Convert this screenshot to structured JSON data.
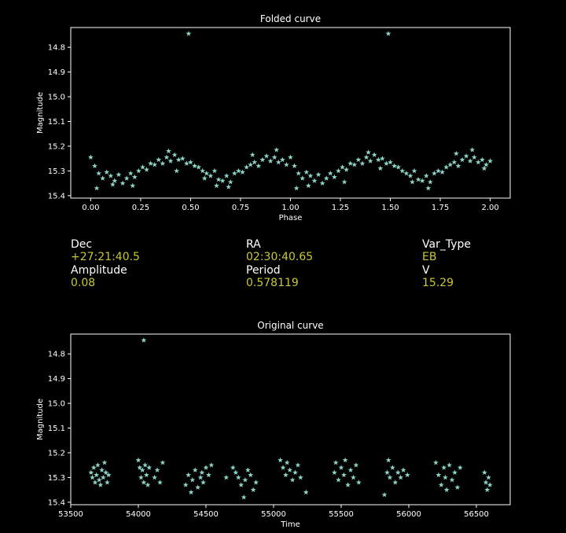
{
  "theme": {
    "background": "#000000",
    "marker_color": "#8dd3c7",
    "value_color": "#c8c832",
    "text_color": "#ffffff"
  },
  "info": {
    "dec_label": "Dec",
    "dec_value": "+27:21:40.5",
    "ra_label": "RA",
    "ra_value": "02:30:40.65",
    "vartype_label": "Var_Type",
    "vartype_value": "EB",
    "amplitude_label": "Amplitude",
    "amplitude_value": "0.08",
    "period_label": "Period",
    "period_value": "0.578119",
    "v_label": "V",
    "v_value": "15.29"
  },
  "chart_data": [
    {
      "type": "scatter",
      "title": "Folded curve",
      "xlabel": "Phase",
      "ylabel": "Magnitude",
      "xlim": [
        -0.1,
        2.1
      ],
      "ylim": [
        15.41,
        14.72
      ],
      "y_inverted": true,
      "xticks": [
        0.0,
        0.25,
        0.5,
        0.75,
        1.0,
        1.25,
        1.5,
        1.75,
        2.0
      ],
      "xtick_labels": [
        "0.00",
        "0.25",
        "0.50",
        "0.75",
        "1.00",
        "1.25",
        "1.50",
        "1.75",
        "2.00"
      ],
      "yticks": [
        14.8,
        14.9,
        15.0,
        15.1,
        15.2,
        15.3,
        15.4
      ],
      "ytick_labels": [
        "14.8",
        "14.9",
        "15.0",
        "15.1",
        "15.2",
        "15.3",
        "15.4"
      ],
      "marker": "star",
      "grid": false,
      "points": [
        [
          0.49,
          14.745
        ],
        [
          1.49,
          14.745
        ],
        [
          0.0,
          15.245
        ],
        [
          0.02,
          15.28
        ],
        [
          0.04,
          15.31
        ],
        [
          0.06,
          15.33
        ],
        [
          0.08,
          15.305
        ],
        [
          0.1,
          15.32
        ],
        [
          0.12,
          15.34
        ],
        [
          0.14,
          15.315
        ],
        [
          0.16,
          15.35
        ],
        [
          0.18,
          15.33
        ],
        [
          0.2,
          15.31
        ],
        [
          0.22,
          15.325
        ],
        [
          0.24,
          15.3
        ],
        [
          0.26,
          15.285
        ],
        [
          0.28,
          15.295
        ],
        [
          0.3,
          15.27
        ],
        [
          0.32,
          15.275
        ],
        [
          0.34,
          15.255
        ],
        [
          0.36,
          15.27
        ],
        [
          0.38,
          15.245
        ],
        [
          0.4,
          15.26
        ],
        [
          0.42,
          15.235
        ],
        [
          0.44,
          15.255
        ],
        [
          0.46,
          15.25
        ],
        [
          0.48,
          15.27
        ],
        [
          0.5,
          15.265
        ],
        [
          0.52,
          15.28
        ],
        [
          0.54,
          15.285
        ],
        [
          0.56,
          15.3
        ],
        [
          0.58,
          15.31
        ],
        [
          0.6,
          15.32
        ],
        [
          0.62,
          15.3
        ],
        [
          0.64,
          15.335
        ],
        [
          0.66,
          15.34
        ],
        [
          0.68,
          15.32
        ],
        [
          0.7,
          15.345
        ],
        [
          0.72,
          15.31
        ],
        [
          0.74,
          15.3
        ],
        [
          0.76,
          15.305
        ],
        [
          0.78,
          15.285
        ],
        [
          0.8,
          15.275
        ],
        [
          0.82,
          15.265
        ],
        [
          0.84,
          15.28
        ],
        [
          0.86,
          15.255
        ],
        [
          0.88,
          15.24
        ],
        [
          0.9,
          15.26
        ],
        [
          0.92,
          15.245
        ],
        [
          0.94,
          15.265
        ],
        [
          0.96,
          15.255
        ],
        [
          0.98,
          15.275
        ],
        [
          1.0,
          15.245
        ],
        [
          1.02,
          15.28
        ],
        [
          1.04,
          15.31
        ],
        [
          1.06,
          15.33
        ],
        [
          1.08,
          15.305
        ],
        [
          1.1,
          15.32
        ],
        [
          1.12,
          15.34
        ],
        [
          1.14,
          15.315
        ],
        [
          1.16,
          15.35
        ],
        [
          1.18,
          15.33
        ],
        [
          1.2,
          15.31
        ],
        [
          1.22,
          15.325
        ],
        [
          1.24,
          15.3
        ],
        [
          1.26,
          15.285
        ],
        [
          1.28,
          15.295
        ],
        [
          1.3,
          15.27
        ],
        [
          1.32,
          15.275
        ],
        [
          1.34,
          15.255
        ],
        [
          1.36,
          15.27
        ],
        [
          1.38,
          15.245
        ],
        [
          1.4,
          15.26
        ],
        [
          1.42,
          15.235
        ],
        [
          1.44,
          15.255
        ],
        [
          1.46,
          15.25
        ],
        [
          1.48,
          15.27
        ],
        [
          1.5,
          15.265
        ],
        [
          1.52,
          15.28
        ],
        [
          1.54,
          15.285
        ],
        [
          1.56,
          15.3
        ],
        [
          1.58,
          15.31
        ],
        [
          1.6,
          15.32
        ],
        [
          1.62,
          15.3
        ],
        [
          1.64,
          15.335
        ],
        [
          1.66,
          15.34
        ],
        [
          1.68,
          15.32
        ],
        [
          1.7,
          15.345
        ],
        [
          1.72,
          15.31
        ],
        [
          1.74,
          15.3
        ],
        [
          1.76,
          15.305
        ],
        [
          1.78,
          15.285
        ],
        [
          1.8,
          15.275
        ],
        [
          1.82,
          15.265
        ],
        [
          1.84,
          15.28
        ],
        [
          1.86,
          15.255
        ],
        [
          1.88,
          15.24
        ],
        [
          1.9,
          15.26
        ],
        [
          1.92,
          15.245
        ],
        [
          1.94,
          15.265
        ],
        [
          1.96,
          15.255
        ],
        [
          1.98,
          15.275
        ],
        [
          2.0,
          15.26
        ],
        [
          0.03,
          15.37
        ],
        [
          0.11,
          15.355
        ],
        [
          0.21,
          15.36
        ],
        [
          0.39,
          15.22
        ],
        [
          0.43,
          15.3
        ],
        [
          0.57,
          15.33
        ],
        [
          0.63,
          15.36
        ],
        [
          0.69,
          15.365
        ],
        [
          0.81,
          15.235
        ],
        [
          0.93,
          15.215
        ],
        [
          1.03,
          15.37
        ],
        [
          1.09,
          15.36
        ],
        [
          1.27,
          15.345
        ],
        [
          1.39,
          15.225
        ],
        [
          1.45,
          15.29
        ],
        [
          1.61,
          15.345
        ],
        [
          1.69,
          15.37
        ],
        [
          1.83,
          15.23
        ],
        [
          1.91,
          15.215
        ],
        [
          1.97,
          15.29
        ]
      ]
    },
    {
      "type": "scatter",
      "title": "Original curve",
      "xlabel": "Time",
      "ylabel": "Magnitude",
      "xlim": [
        53500,
        56750
      ],
      "ylim": [
        15.41,
        14.72
      ],
      "y_inverted": true,
      "xticks": [
        53500,
        54000,
        54500,
        55000,
        55500,
        56000,
        56500
      ],
      "xtick_labels": [
        "53500",
        "54000",
        "54500",
        "55000",
        "55500",
        "56000",
        "56500"
      ],
      "yticks": [
        14.8,
        14.9,
        15.0,
        15.1,
        15.2,
        15.3,
        15.4
      ],
      "ytick_labels": [
        "14.8",
        "14.9",
        "15.0",
        "15.1",
        "15.2",
        "15.3",
        "15.4"
      ],
      "marker": "star",
      "grid": false,
      "points": [
        [
          54040,
          14.745
        ],
        [
          53650,
          15.28
        ],
        [
          53660,
          15.3
        ],
        [
          53670,
          15.26
        ],
        [
          53680,
          15.32
        ],
        [
          53690,
          15.29
        ],
        [
          53700,
          15.25
        ],
        [
          53710,
          15.31
        ],
        [
          53720,
          15.33
        ],
        [
          53730,
          15.27
        ],
        [
          53740,
          15.3
        ],
        [
          53750,
          15.24
        ],
        [
          53760,
          15.28
        ],
        [
          53770,
          15.32
        ],
        [
          53780,
          15.29
        ],
        [
          54000,
          15.23
        ],
        [
          54010,
          15.26
        ],
        [
          54020,
          15.3
        ],
        [
          54030,
          15.27
        ],
        [
          54040,
          15.32
        ],
        [
          54050,
          15.25
        ],
        [
          54060,
          15.29
        ],
        [
          54070,
          15.33
        ],
        [
          54080,
          15.26
        ],
        [
          54120,
          15.3
        ],
        [
          54140,
          15.27
        ],
        [
          54160,
          15.32
        ],
        [
          54180,
          15.24
        ],
        [
          54350,
          15.33
        ],
        [
          54370,
          15.29
        ],
        [
          54390,
          15.36
        ],
        [
          54400,
          15.31
        ],
        [
          54420,
          15.27
        ],
        [
          54440,
          15.34
        ],
        [
          54460,
          15.3
        ],
        [
          54470,
          15.28
        ],
        [
          54480,
          15.32
        ],
        [
          54500,
          15.26
        ],
        [
          54520,
          15.29
        ],
        [
          54540,
          15.25
        ],
        [
          54650,
          15.3
        ],
        [
          54700,
          15.26
        ],
        [
          54720,
          15.28
        ],
        [
          54740,
          15.3
        ],
        [
          54760,
          15.33
        ],
        [
          54780,
          15.38
        ],
        [
          54790,
          15.31
        ],
        [
          54810,
          15.27
        ],
        [
          54830,
          15.29
        ],
        [
          54850,
          15.35
        ],
        [
          54870,
          15.32
        ],
        [
          55050,
          15.23
        ],
        [
          55070,
          15.26
        ],
        [
          55090,
          15.29
        ],
        [
          55100,
          15.24
        ],
        [
          55120,
          15.27
        ],
        [
          55140,
          15.31
        ],
        [
          55160,
          15.28
        ],
        [
          55180,
          15.25
        ],
        [
          55200,
          15.3
        ],
        [
          55240,
          15.36
        ],
        [
          55450,
          15.28
        ],
        [
          55460,
          15.24
        ],
        [
          55480,
          15.31
        ],
        [
          55500,
          15.26
        ],
        [
          55520,
          15.29
        ],
        [
          55530,
          15.23
        ],
        [
          55550,
          15.33
        ],
        [
          55570,
          15.27
        ],
        [
          55590,
          15.3
        ],
        [
          55610,
          15.25
        ],
        [
          55630,
          15.32
        ],
        [
          55820,
          15.37
        ],
        [
          55840,
          15.28
        ],
        [
          55850,
          15.23
        ],
        [
          55860,
          15.3
        ],
        [
          55880,
          15.26
        ],
        [
          55900,
          15.32
        ],
        [
          55920,
          15.28
        ],
        [
          55940,
          15.3
        ],
        [
          55960,
          15.27
        ],
        [
          55990,
          15.29
        ],
        [
          56200,
          15.24
        ],
        [
          56220,
          15.29
        ],
        [
          56240,
          15.33
        ],
        [
          56260,
          15.26
        ],
        [
          56270,
          15.3
        ],
        [
          56280,
          15.35
        ],
        [
          56300,
          15.25
        ],
        [
          56320,
          15.31
        ],
        [
          56340,
          15.28
        ],
        [
          56360,
          15.34
        ],
        [
          56380,
          15.26
        ],
        [
          56560,
          15.28
        ],
        [
          56570,
          15.32
        ],
        [
          56580,
          15.35
        ],
        [
          56590,
          15.3
        ],
        [
          56600,
          15.33
        ]
      ]
    }
  ]
}
